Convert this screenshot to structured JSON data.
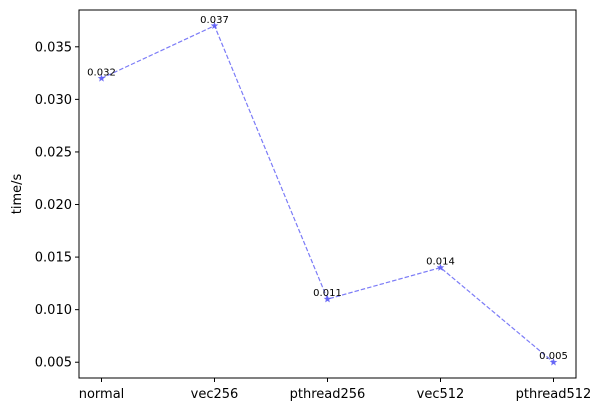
{
  "chart_data": {
    "type": "line",
    "categories": [
      "normal",
      "vec256",
      "pthread256",
      "vec512",
      "pthread512"
    ],
    "series": [
      {
        "values": [
          0.032,
          0.037,
          0.011,
          0.014,
          0.005
        ],
        "data_labels": [
          "0.032",
          "0.037",
          "0.011",
          "0.014",
          "0.005"
        ],
        "color": "#5b5bf5",
        "line_style": "dashed",
        "marker": "star"
      }
    ],
    "title": "",
    "xlabel": "",
    "ylabel": "time/s",
    "ylim": [
      0.0035,
      0.0385
    ],
    "yticks": [
      0.005,
      0.01,
      0.015,
      0.02,
      0.025,
      0.03,
      0.035
    ],
    "ytick_labels": [
      "0.005",
      "0.010",
      "0.015",
      "0.020",
      "0.025",
      "0.030",
      "0.035"
    ],
    "grid": false,
    "legend": "none"
  }
}
